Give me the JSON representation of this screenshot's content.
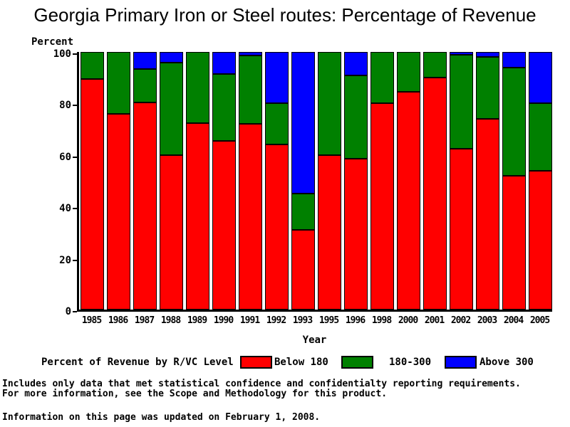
{
  "title": "Georgia Primary Iron or Steel routes: Percentage of Revenue",
  "chart_data": {
    "type": "bar",
    "stacked": true,
    "title": "Georgia Primary Iron or Steel routes: Percentage of Revenue",
    "ylabel": "Percent",
    "xlabel": "Year",
    "ylim": [
      0,
      100
    ],
    "yticks": [
      0,
      20,
      40,
      60,
      80,
      100
    ],
    "grid": false,
    "legend_title": "Percent of Revenue by R/VC Level",
    "legend_position": "bottom",
    "categories": [
      "1985",
      "1986",
      "1987",
      "1988",
      "1989",
      "1990",
      "1991",
      "1992",
      "1993",
      "1995",
      "1996",
      "1998",
      "2000",
      "2001",
      "2002",
      "2003",
      "2004",
      "2005"
    ],
    "series": [
      {
        "name": "Below 180",
        "color": "#ff0000",
        "values": [
          89.5,
          76,
          80.5,
          60,
          72.5,
          65.5,
          72,
          64,
          31,
          60,
          58.5,
          80,
          84.5,
          90,
          62.5,
          74,
          52,
          53.8
        ]
      },
      {
        "name": "180-300",
        "color": "#008000",
        "values": [
          10.5,
          24,
          13,
          36,
          27.5,
          26,
          26.5,
          16,
          14,
          40,
          32.3,
          20,
          15.5,
          10,
          36.5,
          24,
          42,
          26.4
        ]
      },
      {
        "name": "Above 300",
        "color": "#0000ff",
        "values": [
          0,
          0,
          6.5,
          4,
          0,
          8.5,
          1.5,
          20,
          55,
          0,
          9.2,
          0,
          0,
          0,
          1,
          2,
          6,
          19.8
        ]
      }
    ]
  },
  "footer": {
    "note_line1": "Includes only data that met statistical confidence and confidentialty reporting requirements.",
    "note_line2": "For more information, see the Scope and Methodology for this product.",
    "updated": "Information on this page was updated on February 1, 2008."
  }
}
